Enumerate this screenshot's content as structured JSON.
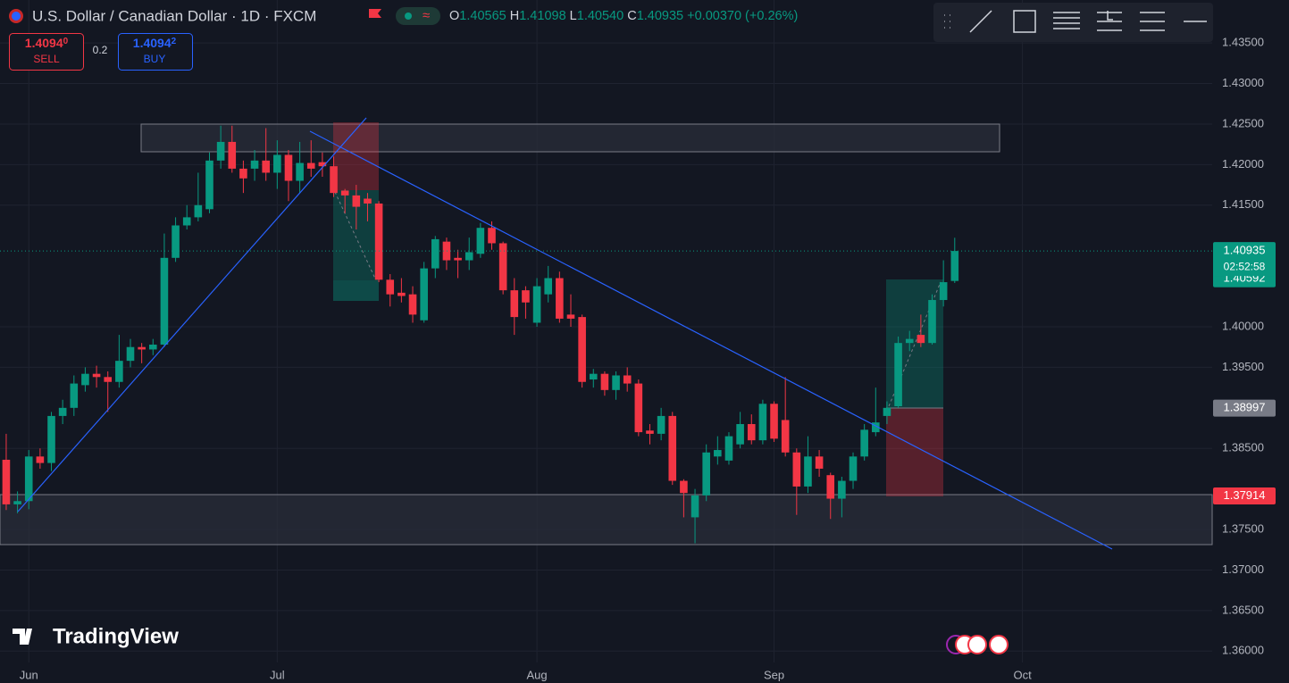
{
  "header": {
    "title": "U.S. Dollar / Canadian Dollar · 1D · FXCM",
    "ohlc": [
      {
        "key": "O",
        "value": "1.40565"
      },
      {
        "key": "H",
        "value": "1.41098"
      },
      {
        "key": "L",
        "value": "1.40540"
      },
      {
        "key": "C",
        "value": "1.40935"
      }
    ],
    "change": "+0.00370 (+0.26%)",
    "sell": {
      "price": "1.4094",
      "pip": "0",
      "label": "SELL"
    },
    "spread": "0.2",
    "buy": {
      "price": "1.4094",
      "pip": "2",
      "label": "BUY"
    },
    "logo": "TradingView"
  },
  "chart_data": {
    "type": "candlestick",
    "categories": [
      null,
      null,
      null,
      null,
      null,
      null,
      null,
      null,
      null,
      null,
      null,
      null,
      null,
      null,
      null,
      null,
      null,
      null,
      null,
      null,
      null,
      null,
      null,
      null,
      null,
      null,
      null,
      null,
      null,
      null,
      null,
      null,
      null,
      null,
      null,
      null,
      null,
      null,
      null,
      null,
      null,
      null,
      null,
      null,
      null,
      null,
      null,
      null,
      null,
      null,
      null,
      null,
      null,
      null,
      null,
      null,
      null,
      null,
      null,
      null,
      null,
      null,
      null,
      null,
      null,
      null,
      null,
      null,
      null,
      null,
      null,
      null,
      null,
      null,
      null,
      null,
      null,
      null,
      null,
      null,
      null,
      null,
      null,
      null,
      null
    ],
    "open": [
      1.3836,
      1.3781,
      1.3785,
      1.384,
      1.3832,
      1.389,
      1.39,
      1.3928,
      1.3942,
      1.3938,
      1.3932,
      1.3958,
      1.3975,
      1.3972,
      1.3978,
      1.4085,
      1.4125,
      1.4135,
      1.4145,
      1.4205,
      1.4228,
      1.4195,
      1.4195,
      1.4205,
      1.419,
      1.4212,
      1.418,
      1.4202,
      1.4203,
      1.4198,
      1.4168,
      1.4162,
      1.4158,
      1.4152,
      1.4058,
      1.4042,
      1.404,
      1.4008,
      1.4072,
      1.4105,
      1.4085,
      1.4082,
      1.409,
      1.4122,
      1.4103,
      1.4045,
      1.4045,
      1.4005,
      1.404,
      1.406,
      1.4015,
      1.4012,
      1.3935,
      1.3942,
      1.3922,
      1.394,
      1.393,
      1.3872,
      1.3868,
      1.389,
      1.381,
      1.3765,
      1.3792,
      1.384,
      1.3835,
      1.3855,
      1.388,
      1.386,
      1.3905,
      1.3885,
      1.3845,
      1.3803,
      1.384,
      1.3817,
      1.3788,
      1.381,
      1.384,
      1.387,
      1.389,
      1.3902,
      1.398,
      1.399,
      1.398,
      1.4033,
      1.40565
    ],
    "high": [
      1.3868,
      1.3797,
      1.3848,
      1.385,
      1.3895,
      1.391,
      1.394,
      1.395,
      1.3952,
      1.3945,
      1.399,
      1.3985,
      1.398,
      1.3985,
      1.4115,
      1.4135,
      1.415,
      1.419,
      1.4215,
      1.4248,
      1.4248,
      1.4205,
      1.4218,
      1.4245,
      1.423,
      1.4218,
      1.4228,
      1.423,
      1.4215,
      1.421,
      1.417,
      1.4175,
      1.4165,
      1.4155,
      1.4065,
      1.406,
      1.405,
      1.408,
      1.4112,
      1.411,
      1.4095,
      1.411,
      1.4128,
      1.413,
      1.4105,
      1.406,
      1.405,
      1.406,
      1.4075,
      1.4068,
      1.404,
      1.4015,
      1.3948,
      1.3945,
      1.3945,
      1.395,
      1.3935,
      1.388,
      1.39,
      1.3895,
      1.3812,
      1.38,
      1.3855,
      1.3865,
      1.387,
      1.3895,
      1.3892,
      1.391,
      1.3908,
      1.3938,
      1.385,
      1.3865,
      1.3848,
      1.382,
      1.3815,
      1.3845,
      1.388,
      1.3925,
      1.3908,
      1.3988,
      1.3995,
      1.4015,
      1.404,
      1.4082,
      1.41098
    ],
    "low": [
      1.3774,
      1.377,
      1.3775,
      1.3825,
      1.3822,
      1.388,
      1.389,
      1.392,
      1.3925,
      1.3895,
      1.3925,
      1.395,
      1.3955,
      1.3965,
      1.3975,
      1.408,
      1.412,
      1.413,
      1.414,
      1.4195,
      1.419,
      1.4165,
      1.418,
      1.418,
      1.417,
      1.4155,
      1.4165,
      1.4185,
      1.4185,
      1.416,
      1.414,
      1.412,
      1.413,
      1.4055,
      1.4025,
      1.403,
      1.4005,
      1.4005,
      1.406,
      1.407,
      1.406,
      1.407,
      1.4085,
      1.4095,
      1.404,
      1.399,
      1.401,
      1.4,
      1.403,
      1.4005,
      1.4,
      1.3925,
      1.3925,
      1.3915,
      1.391,
      1.392,
      1.3865,
      1.3855,
      1.386,
      1.3805,
      1.3765,
      1.3733,
      1.3785,
      1.383,
      1.383,
      1.385,
      1.3855,
      1.3855,
      1.3858,
      1.384,
      1.3768,
      1.3795,
      1.3815,
      1.3763,
      1.3765,
      1.38,
      1.3835,
      1.3865,
      1.388,
      1.39,
      1.397,
      1.3975,
      1.3978,
      1.4025,
      1.4054
    ],
    "close": [
      1.3781,
      1.3785,
      1.384,
      1.3832,
      1.389,
      1.39,
      1.393,
      1.3942,
      1.3938,
      1.3932,
      1.3958,
      1.3975,
      1.3972,
      1.3978,
      1.4085,
      1.4125,
      1.4135,
      1.415,
      1.4205,
      1.4228,
      1.4195,
      1.4183,
      1.4205,
      1.419,
      1.4212,
      1.418,
      1.4202,
      1.4195,
      1.4198,
      1.4165,
      1.4162,
      1.4148,
      1.4152,
      1.4058,
      1.404,
      1.4038,
      1.4015,
      1.4072,
      1.4108,
      1.4082,
      1.4082,
      1.4092,
      1.4122,
      1.4103,
      1.4045,
      1.4012,
      1.403,
      1.405,
      1.406,
      1.401,
      1.401,
      1.3932,
      1.3942,
      1.3922,
      1.394,
      1.393,
      1.387,
      1.3868,
      1.389,
      1.381,
      1.3795,
      1.3792,
      1.3845,
      1.3848,
      1.3865,
      1.388,
      1.386,
      1.3905,
      1.3862,
      1.3845,
      1.3803,
      1.384,
      1.3825,
      1.3788,
      1.381,
      1.384,
      1.3873,
      1.3882,
      1.39,
      1.398,
      1.3985,
      1.398,
      1.4033,
      1.4055,
      1.40935
    ],
    "up_color": "#089981",
    "down_color": "#f23645",
    "xlim": [
      -0.55,
      106.8
    ],
    "xticks": [
      {
        "value": 2,
        "label": "Jun"
      },
      {
        "value": 24,
        "label": "Jul"
      },
      {
        "value": 47,
        "label": "Aug"
      },
      {
        "value": 68,
        "label": "Sep"
      },
      {
        "value": 90,
        "label": "Oct"
      }
    ],
    "ylim": [
      1.3586,
      1.4403
    ],
    "yticks": [
      {
        "value": 1.435,
        "label": "1.43500"
      },
      {
        "value": 1.43,
        "label": "1.43000"
      },
      {
        "value": 1.425,
        "label": "1.42500"
      },
      {
        "value": 1.42,
        "label": "1.42000"
      },
      {
        "value": 1.415,
        "label": "1.41500"
      },
      {
        "value": 1.4,
        "label": "1.40000"
      },
      {
        "value": 1.395,
        "label": "1.39500"
      },
      {
        "value": 1.385,
        "label": "1.38500"
      },
      {
        "value": 1.375,
        "label": "1.37500"
      },
      {
        "value": 1.37,
        "label": "1.37000"
      },
      {
        "value": 1.365,
        "label": "1.36500"
      },
      {
        "value": 1.36,
        "label": "1.36000"
      }
    ],
    "grid": true,
    "last_price": 1.40935,
    "countdown": "02:52:58",
    "price_tags": [
      {
        "value": 1.40592,
        "color": "#089981"
      },
      {
        "value": 1.38997,
        "color": "#787b86"
      },
      {
        "value": 1.37914,
        "color": "#f23645"
      }
    ]
  }
}
